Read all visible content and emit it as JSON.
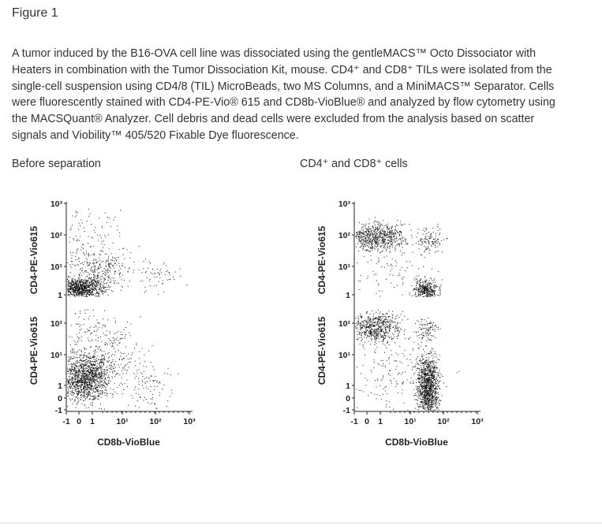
{
  "header": {
    "title": "Figure 1"
  },
  "description": [
    "A tumor induced by the B16-OVA cell line was dissociated using the gentleMACS™ Octo Dissociator with",
    "Heaters in combination with the Tumor Dissociation Kit, mouse. CD4⁺ and CD8⁺ TILs were isolated from the",
    "single-cell suspension using CD4/8 (TIL) MicroBeads, two MS Columns, and a MiniMACS™ Separator. Cells",
    "were fluorescently stained with CD4-PE-Vio® 615 and CD8b-VioBlue® and analyzed by flow cytometry using",
    "the MACSQuant® Analyzer. Cell debris and dead cells were excluded from the analysis based on scatter",
    "signals and Viobility™ 405/520 Fixable Dye fluorescence."
  ],
  "panels": [
    {
      "label": "Before separation",
      "y_axis_label": "CD4-PE-Vio615",
      "x_axis_label": "CD8b-VioBlue",
      "y_ticks_top": [
        "10³",
        "10²",
        "10¹",
        "1"
      ],
      "y_ticks_bottom": [
        "10²",
        "10¹",
        "1",
        "0",
        "-1"
      ],
      "x_ticks": [
        "-1",
        "0",
        "1",
        "10¹",
        "10²",
        "10³"
      ]
    },
    {
      "label": "CD4⁺ and CD8⁺ cells",
      "y_axis_label": "CD4-PE-Vio615",
      "x_axis_label": "CD8b-VioBlue",
      "y_ticks_top": [
        "10³",
        "10²",
        "10¹",
        "1"
      ],
      "y_ticks_bottom": [
        "10²",
        "10¹",
        "1",
        "0",
        "-1"
      ],
      "x_ticks": [
        "-1",
        "0",
        "1",
        "10¹",
        "10²",
        "10³"
      ]
    }
  ]
}
